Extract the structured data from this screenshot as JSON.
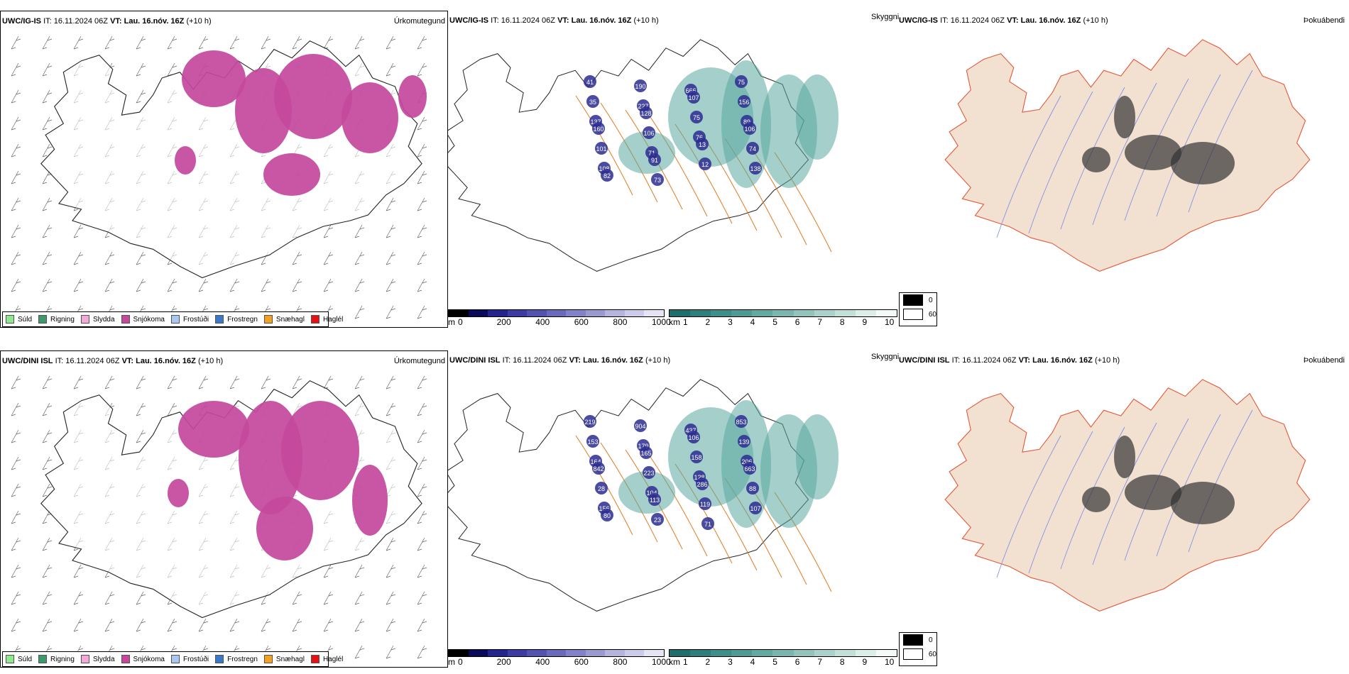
{
  "rows": [
    {
      "model": "UWC/IG-IS",
      "it_label": "IT:",
      "it_value": "16.11.2024 06Z",
      "vt_label": "VT:",
      "vt_value": "Lau. 16.nóv. 16Z",
      "lead": "(+10 h)",
      "precip_title": "Úrkomutegund",
      "cloud_title": "Skyggni",
      "fog_title": "Þokuábendi",
      "cloud_labels": [
        "41",
        "190",
        "666",
        "75",
        "35",
        "227",
        "107",
        "156",
        "137",
        "128",
        "75",
        "89",
        "160",
        "106",
        "76",
        "106",
        "101",
        "71",
        "13",
        "74",
        "108",
        "91",
        "12",
        "138",
        "82",
        "73"
      ]
    },
    {
      "model": "UWC/DINI ISL",
      "it_label": "IT:",
      "it_value": "16.11.2024 06Z",
      "vt_label": "VT:",
      "vt_value": "Lau. 16.nóv. 16Z",
      "lead": "(+10 h)",
      "precip_title": "Úrkomutegund",
      "cloud_title": "Skyggni",
      "fog_title": "Þokuábendi",
      "cloud_labels": [
        "219",
        "904",
        "437",
        "853",
        "153",
        "179",
        "106",
        "139",
        "164",
        "165",
        "158",
        "206",
        "842",
        "223",
        "128",
        "663",
        "28",
        "104",
        "286",
        "88",
        "156",
        "113",
        "119",
        "107",
        "80",
        "23",
        "71"
      ]
    }
  ],
  "precip_legend": [
    {
      "label": "Súld",
      "color": "#8ee88e"
    },
    {
      "label": "Rigning",
      "color": "#3a9a6a"
    },
    {
      "label": "Slydda",
      "color": "#f4a8d8"
    },
    {
      "label": "Snjókoma",
      "color": "#c4489c"
    },
    {
      "label": "Frostúði",
      "color": "#a8c8f0"
    },
    {
      "label": "Frostregn",
      "color": "#3c78c8"
    },
    {
      "label": "Snæhagl",
      "color": "#f4a020"
    },
    {
      "label": "Haglél",
      "color": "#e81010"
    }
  ],
  "height_bar": {
    "unit": "m",
    "ticks": [
      "0",
      "200",
      "400",
      "600",
      "800",
      "1000"
    ],
    "colors": [
      "#000000",
      "#0a0a5a",
      "#24248e",
      "#3c3ca4",
      "#5252b0",
      "#6a6abc",
      "#8282c8",
      "#9a9ad0",
      "#b4b4dc",
      "#ccccea",
      "#e4e4f4"
    ]
  },
  "vis_bar": {
    "unit": "km",
    "ticks": [
      "1",
      "2",
      "3",
      "4",
      "5",
      "6",
      "7",
      "8",
      "9",
      "10"
    ],
    "colors": [
      "#1e6e6e",
      "#2e7e7e",
      "#3e8e8a",
      "#509a96",
      "#64a8a2",
      "#7ab6ae",
      "#92c4bc",
      "#aad2ca",
      "#c2e0d8",
      "#dceee8",
      "#f4faf8"
    ]
  },
  "fog_legend": [
    {
      "label": "0",
      "color": "#000000"
    },
    {
      "label": "60",
      "color": "#ffffff"
    }
  ]
}
